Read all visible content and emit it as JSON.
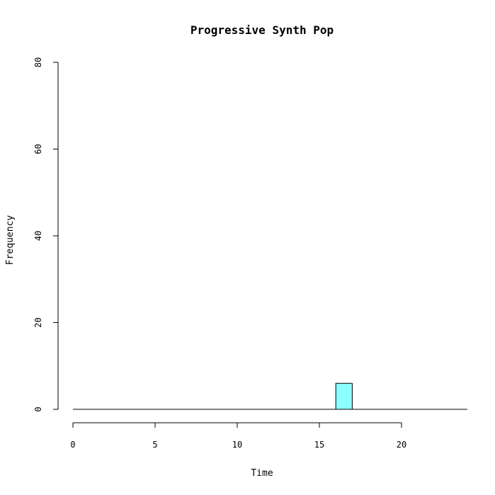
{
  "chart_data": {
    "type": "bar",
    "title": "Progressive Synth Pop",
    "xlabel": "Time",
    "ylabel": "Frequency",
    "bin_width": 1,
    "bins": [
      {
        "start": 16,
        "end": 17,
        "count": 6
      }
    ],
    "xlim": [
      0,
      24
    ],
    "ylim": [
      0,
      80
    ],
    "x_ticks": [
      0,
      5,
      10,
      15,
      20
    ],
    "y_ticks": [
      0,
      20,
      40,
      60,
      80
    ],
    "bar_color": "#8cffff",
    "bar_outline": "#000000",
    "grid": false,
    "legend": "none"
  }
}
